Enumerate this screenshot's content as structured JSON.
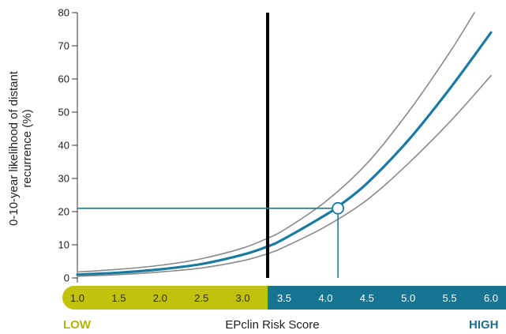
{
  "chart_data": {
    "type": "line",
    "title": "",
    "xlabel": "EPclin Risk Score",
    "ylabel": "0-10-year likelihood of distant recurrence (%)",
    "ylabel_lines": [
      "0-10-year likelihood of distant",
      "recurrence (%)"
    ],
    "xlim": [
      1.0,
      6.0
    ],
    "ylim": [
      0,
      80
    ],
    "x_ticks": [
      "1.0",
      "1.5",
      "2.0",
      "2.5",
      "3.0",
      "3.5",
      "4.0",
      "4.5",
      "5.0",
      "5.5",
      "6.0"
    ],
    "y_ticks": [
      "0",
      "10",
      "20",
      "30",
      "40",
      "50",
      "60",
      "70",
      "80"
    ],
    "grid": false,
    "low_label": "LOW",
    "high_label": "HIGH",
    "cutoff": 3.3,
    "highlight_point": {
      "x": 4.15,
      "y": 21
    },
    "series": [
      {
        "role": "estimate",
        "x": [
          1.0,
          1.5,
          2.0,
          2.5,
          3.0,
          3.3,
          3.5,
          4.0,
          4.15,
          4.5,
          5.0,
          5.5,
          6.0
        ],
        "values": [
          1.0,
          1.6,
          2.6,
          4.2,
          7.0,
          9.5,
          11.8,
          19.0,
          21.5,
          28.5,
          41.5,
          57.0,
          74.0
        ]
      },
      {
        "role": "upper-bound",
        "x": [
          1.0,
          1.5,
          2.0,
          2.5,
          3.0,
          3.3,
          3.5,
          4.0,
          4.5,
          5.0,
          5.5,
          5.8
        ],
        "values": [
          1.8,
          2.6,
          3.8,
          5.8,
          9.0,
          12.0,
          14.5,
          23.0,
          34.5,
          50.0,
          68.0,
          80.0
        ]
      },
      {
        "role": "lower-bound",
        "x": [
          1.0,
          1.5,
          2.0,
          2.5,
          3.0,
          3.3,
          3.5,
          4.0,
          4.5,
          5.0,
          5.5,
          6.0
        ],
        "values": [
          0.5,
          1.0,
          1.8,
          3.0,
          5.2,
          7.3,
          9.3,
          15.5,
          23.5,
          34.5,
          47.0,
          61.0
        ]
      }
    ],
    "colors": {
      "estimate": "#1a7aa0",
      "bounds": "#8a8a8a",
      "cutoff": "#000000",
      "low_band": "#c2c20c",
      "high_band": "#157592",
      "low_text": "#b3b300",
      "high_text": "#1a6f93"
    }
  }
}
